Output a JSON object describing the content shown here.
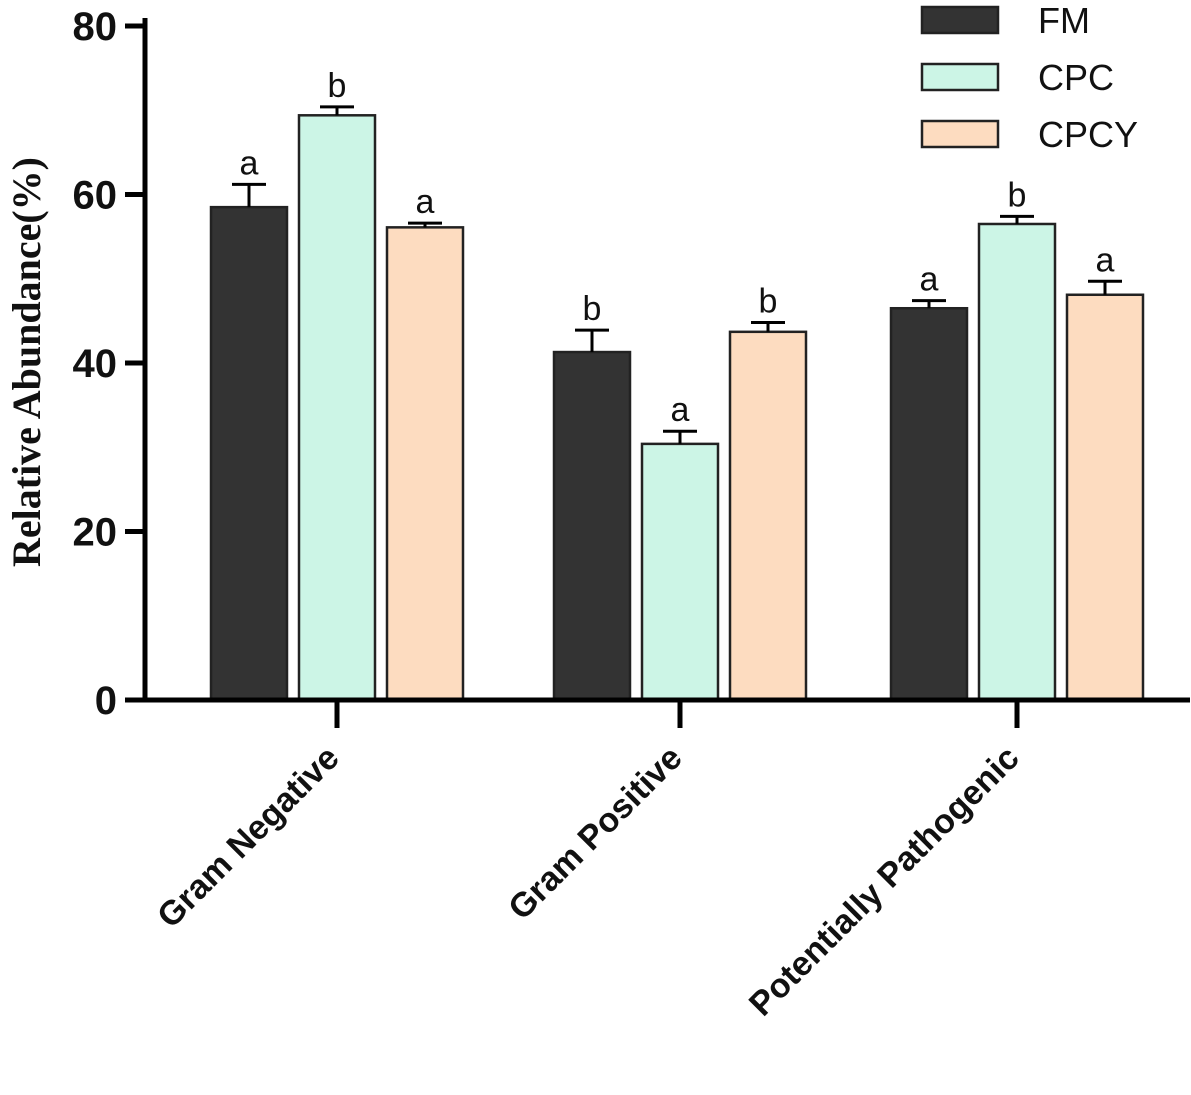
{
  "chart_data": {
    "type": "bar",
    "categories": [
      "Gram Negative",
      "Gram Positive",
      "Potentially Pathogenic"
    ],
    "series": [
      {
        "name": "FM",
        "color": "#333333",
        "values": [
          58.5,
          41.3,
          46.5
        ],
        "errors": [
          2.7,
          2.6,
          0.9
        ],
        "letters": [
          "a",
          "b",
          "a"
        ]
      },
      {
        "name": "CPC",
        "color": "#ccf5e6",
        "values": [
          69.4,
          30.4,
          56.5
        ],
        "errors": [
          1.0,
          1.5,
          0.9
        ],
        "letters": [
          "b",
          "a",
          "b"
        ]
      },
      {
        "name": "CPCY",
        "color": "#fddcc0",
        "values": [
          56.1,
          43.7,
          48.1
        ],
        "errors": [
          0.5,
          1.1,
          1.6
        ],
        "letters": [
          "a",
          "b",
          "a"
        ]
      }
    ],
    "ylabel": "Relative Abundance(%)",
    "xlabel": "",
    "ylim": [
      0,
      80
    ],
    "yticks": [
      0,
      20,
      40,
      60,
      80
    ],
    "legend_position": "top-right",
    "grid": false
  }
}
